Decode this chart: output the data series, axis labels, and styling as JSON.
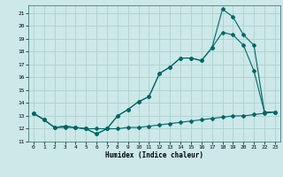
{
  "xlabel": "Humidex (Indice chaleur)",
  "bg_color": "#cce8e8",
  "grid_color": "#b0d0d0",
  "line_color": "#006666",
  "xlim": [
    -0.5,
    23.5
  ],
  "ylim": [
    11.0,
    21.6
  ],
  "yticks": [
    11,
    12,
    13,
    14,
    15,
    16,
    17,
    18,
    19,
    20,
    21
  ],
  "xticks": [
    0,
    1,
    2,
    3,
    4,
    5,
    6,
    7,
    8,
    9,
    10,
    11,
    12,
    13,
    14,
    15,
    16,
    17,
    18,
    19,
    20,
    21,
    22,
    23
  ],
  "line1_y": [
    13.2,
    12.7,
    12.1,
    12.1,
    12.1,
    12.0,
    12.0,
    12.0,
    12.0,
    12.1,
    12.1,
    12.2,
    12.3,
    12.4,
    12.5,
    12.6,
    12.7,
    12.8,
    12.9,
    13.0,
    13.0,
    13.1,
    13.2,
    13.3
  ],
  "line2_y": [
    13.2,
    12.7,
    12.1,
    12.2,
    12.1,
    12.0,
    11.6,
    12.0,
    13.0,
    13.5,
    14.1,
    14.5,
    16.3,
    16.8,
    17.5,
    17.5,
    17.3,
    18.3,
    19.5,
    19.3,
    18.5,
    16.5,
    13.3,
    13.3
  ],
  "line3_y": [
    13.2,
    12.7,
    12.1,
    12.2,
    12.1,
    12.0,
    11.6,
    12.0,
    13.0,
    13.5,
    14.1,
    14.5,
    16.3,
    16.8,
    17.5,
    17.5,
    17.3,
    18.3,
    21.3,
    20.7,
    19.3,
    18.5,
    13.3,
    13.3
  ]
}
